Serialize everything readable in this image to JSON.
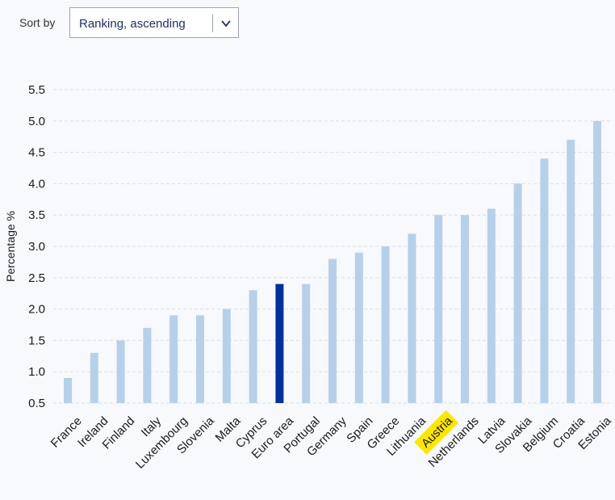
{
  "controls": {
    "sort_label": "Sort by",
    "sort_value": "Ranking, ascending"
  },
  "colors": {
    "bar": "#b6d0ea",
    "bar_highlight": "#003299",
    "label_highlight": "#ffe600",
    "grid": "#d9dde6",
    "text": "#1a1a1a"
  },
  "chart_data": {
    "type": "bar",
    "ylabel": "Percentage %",
    "ylim": [
      0.5,
      5.5
    ],
    "yticks": [
      "0.5",
      "1.0",
      "1.5",
      "2.0",
      "2.5",
      "3.0",
      "3.5",
      "4.0",
      "4.5",
      "5.0",
      "5.5"
    ],
    "grid": true,
    "categories": [
      "France",
      "Ireland",
      "Finland",
      "Italy",
      "Luxembourg",
      "Slovenia",
      "Malta",
      "Cyprus",
      "Euro area",
      "Portugal",
      "Germany",
      "Spain",
      "Greece",
      "Lithuania",
      "Austria",
      "Netherlands",
      "Latvia",
      "Slovakia",
      "Belgium",
      "Croatia",
      "Estonia"
    ],
    "values": [
      0.9,
      1.3,
      1.5,
      1.7,
      1.9,
      1.9,
      2.0,
      2.3,
      2.4,
      2.4,
      2.8,
      2.9,
      3.0,
      3.2,
      3.5,
      3.5,
      3.6,
      4.0,
      4.4,
      4.7,
      5.0
    ],
    "highlighted_bar": "Euro area",
    "highlighted_label": "Austria"
  }
}
